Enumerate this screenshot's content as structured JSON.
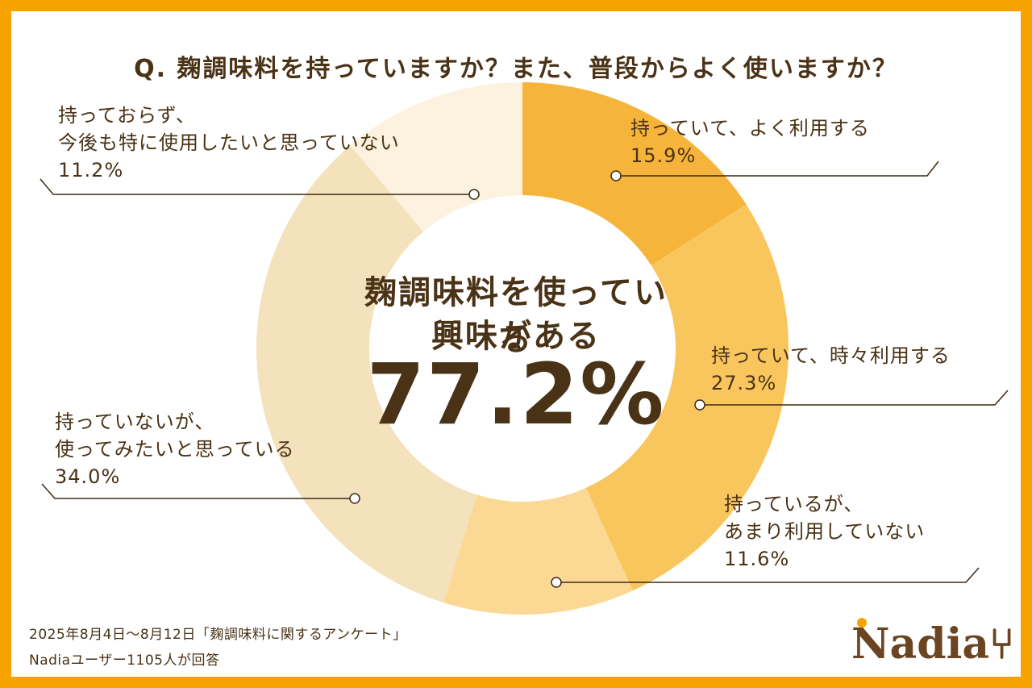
{
  "title": "Q. 麹調味料を持っていますか？また、普段からよく使いますか？",
  "center": {
    "line1": "麹調味料を使っている",
    "line2": "興味がある",
    "value": "77.2%"
  },
  "chart_data": {
    "type": "pie",
    "variant": "donut",
    "slices": [
      {
        "label_lines": [
          "持っていて、よく利用する"
        ],
        "value": 15.9,
        "display": "15.9%",
        "color": "#f7b43a"
      },
      {
        "label_lines": [
          "持っていて、時々利用する"
        ],
        "value": 27.3,
        "display": "27.3%",
        "color": "#f9c65e"
      },
      {
        "label_lines": [
          "持っているが、",
          "あまり利用していない"
        ],
        "value": 11.6,
        "display": "11.6%",
        "color": "#fbd994"
      },
      {
        "label_lines": [
          "持っていないが、",
          "使ってみたいと思っている"
        ],
        "value": 34.0,
        "display": "34.0%",
        "color": "#f4e2bd"
      },
      {
        "label_lines": [
          "持っておらず、",
          "今後も特に使用したいと思っていない"
        ],
        "value": 11.2,
        "display": "11.2%",
        "color": "#fcf2df"
      }
    ],
    "start_angle": "12 o'clock",
    "direction": "clockwise",
    "legend": "none"
  },
  "footer": {
    "line1": "2025年8月4日～8月12日「麹調味料に関するアンケート」",
    "line2": "Nadiaユーザー1105人が回答"
  },
  "logo": {
    "text": "Nadia"
  },
  "colors": {
    "frame": "#f6a300",
    "text": "#4a3216",
    "line": "#3d2a14"
  }
}
